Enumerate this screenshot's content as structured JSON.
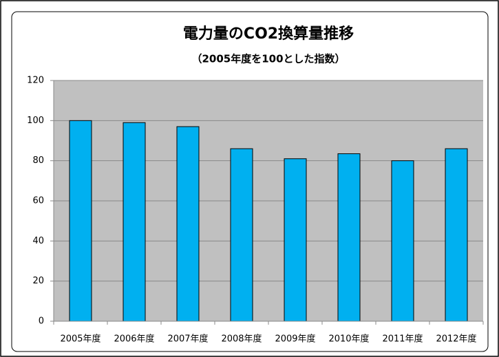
{
  "chart_data": {
    "type": "bar",
    "title": "電力量のCO2換算量推移",
    "subtitle": "（2005年度を100とした指数）",
    "categories": [
      "2005年度",
      "2006年度",
      "2007年度",
      "2008年度",
      "2009年度",
      "2010年度",
      "2011年度",
      "2012年度"
    ],
    "values": [
      100,
      99,
      97,
      86,
      81,
      83.5,
      80,
      86
    ],
    "color": "#00b0f0",
    "ylim": [
      0,
      120
    ],
    "yticks": [
      0,
      20,
      40,
      60,
      80,
      100,
      120
    ],
    "grid": true
  }
}
